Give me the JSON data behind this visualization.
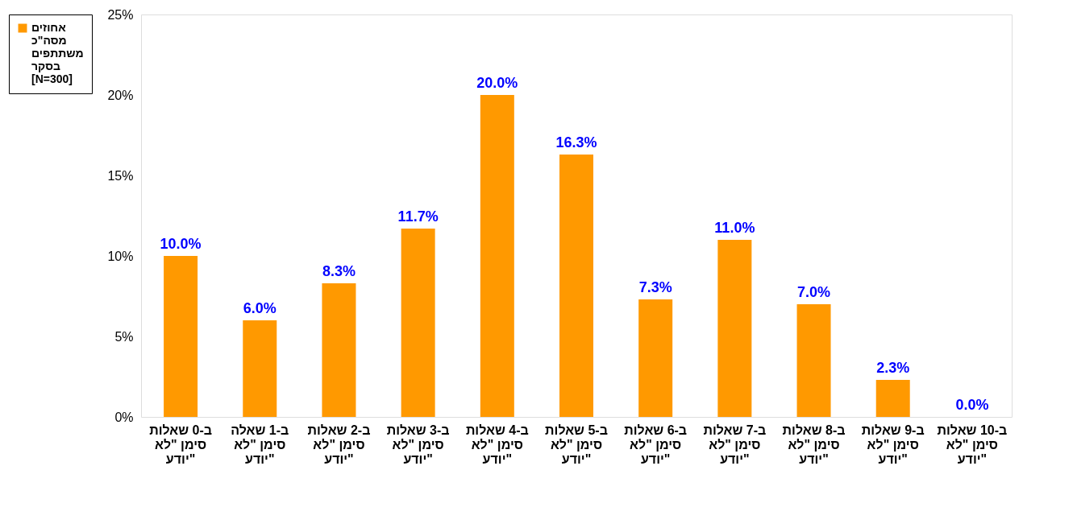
{
  "chart_data": {
    "type": "bar",
    "categories": [
      "ב-0 שאלות סימן \"לא יודע\"",
      "ב-1 שאלה סימן \"לא יודע\"",
      "ב-2 שאלות סימן \"לא יודע\"",
      "ב-3 שאלות סימן \"לא יודע\"",
      "ב-4 שאלות סימן \"לא יודע\"",
      "ב-5 שאלות סימן \"לא יודע\"",
      "ב-6 שאלות סימן \"לא יודע\"",
      "ב-7 שאלות סימן \"לא יודע\"",
      "ב-8 שאלות סימן \"לא יודע\"",
      "ב-9 שאלות סימן \"לא יודע\"",
      "ב-10 שאלות סימן \"לא יודע\""
    ],
    "series": [
      {
        "name": "אחוזים מסה\"כ משתתפים בסקר [N=300]",
        "color": "#ff9900",
        "values": [
          10.0,
          6.0,
          8.3,
          11.7,
          20.0,
          16.3,
          7.3,
          11.0,
          7.0,
          2.3,
          0.0
        ],
        "value_labels": [
          "10.0%",
          "6.0%",
          "8.3%",
          "11.7%",
          "20.0%",
          "16.3%",
          "7.3%",
          "11.0%",
          "7.0%",
          "2.3%",
          "0.0%"
        ]
      }
    ],
    "ylim": [
      0,
      25
    ],
    "yticks": [
      {
        "value": 0,
        "label": "0%"
      },
      {
        "value": 5,
        "label": "5%"
      },
      {
        "value": 10,
        "label": "10%"
      },
      {
        "value": 15,
        "label": "15%"
      },
      {
        "value": 20,
        "label": "20%"
      },
      {
        "value": 25,
        "label": "25%"
      }
    ],
    "grid": false,
    "legend": "left"
  }
}
